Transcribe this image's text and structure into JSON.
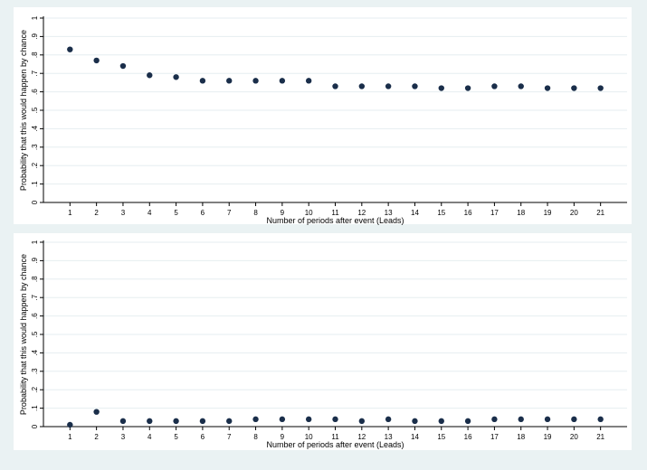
{
  "chart_data": [
    {
      "type": "scatter",
      "xlabel": "Number of periods after event (Leads)",
      "ylabel": "Probability that this would happen by chance",
      "x": [
        1,
        2,
        3,
        4,
        5,
        6,
        7,
        8,
        9,
        10,
        11,
        12,
        13,
        14,
        15,
        16,
        17,
        18,
        19,
        20,
        21
      ],
      "y": [
        0.83,
        0.77,
        0.74,
        0.69,
        0.68,
        0.66,
        0.66,
        0.66,
        0.66,
        0.66,
        0.63,
        0.63,
        0.63,
        0.63,
        0.62,
        0.62,
        0.63,
        0.63,
        0.62,
        0.62,
        0.62
      ],
      "xticks": [
        1,
        2,
        3,
        4,
        5,
        6,
        7,
        8,
        9,
        10,
        11,
        12,
        13,
        14,
        15,
        16,
        17,
        18,
        19,
        20,
        21
      ],
      "xtick_labels": [
        "1",
        "2",
        "3",
        "4",
        "5",
        "6",
        "7",
        "8",
        "9",
        "10",
        "11",
        "12",
        "13",
        "14",
        "15",
        "16",
        "17",
        "18",
        "19",
        "20",
        "21"
      ],
      "yticks": [
        0,
        0.1,
        0.2,
        0.3,
        0.4,
        0.5,
        0.6,
        0.7,
        0.8,
        0.9,
        1
      ],
      "ytick_labels": [
        "0",
        ".1",
        ".2",
        ".3",
        ".4",
        ".5",
        ".6",
        ".7",
        ".8",
        ".9",
        "1"
      ],
      "xlim": [
        0,
        22
      ],
      "ylim": [
        0,
        1
      ],
      "grid": true,
      "marker_color": "#1a2e4a",
      "grid_color": "#e6eef0"
    },
    {
      "type": "scatter",
      "xlabel": "Number of periods after event (Leads)",
      "ylabel": "Probability that this would happen by chance",
      "x": [
        1,
        2,
        3,
        4,
        5,
        6,
        7,
        8,
        9,
        10,
        11,
        12,
        13,
        14,
        15,
        16,
        17,
        18,
        19,
        20,
        21
      ],
      "y": [
        0.01,
        0.08,
        0.03,
        0.03,
        0.03,
        0.03,
        0.03,
        0.04,
        0.04,
        0.04,
        0.04,
        0.03,
        0.04,
        0.03,
        0.03,
        0.03,
        0.04,
        0.04,
        0.04,
        0.04,
        0.04
      ],
      "xticks": [
        1,
        2,
        3,
        4,
        5,
        6,
        7,
        8,
        9,
        10,
        11,
        12,
        13,
        14,
        15,
        16,
        17,
        18,
        19,
        20,
        21
      ],
      "xtick_labels": [
        "1",
        "2",
        "3",
        "4",
        "5",
        "6",
        "7",
        "8",
        "9",
        "10",
        "11",
        "12",
        "13",
        "14",
        "15",
        "16",
        "17",
        "18",
        "19",
        "20",
        "21"
      ],
      "yticks": [
        0,
        0.1,
        0.2,
        0.3,
        0.4,
        0.5,
        0.6,
        0.7,
        0.8,
        0.9,
        1
      ],
      "ytick_labels": [
        "0",
        ".1",
        ".2",
        ".3",
        ".4",
        ".5",
        ".6",
        ".7",
        ".8",
        ".9",
        "1"
      ],
      "xlim": [
        0,
        22
      ],
      "ylim": [
        0,
        1
      ],
      "grid": true,
      "marker_color": "#1a2e4a",
      "grid_color": "#e6eef0"
    }
  ]
}
